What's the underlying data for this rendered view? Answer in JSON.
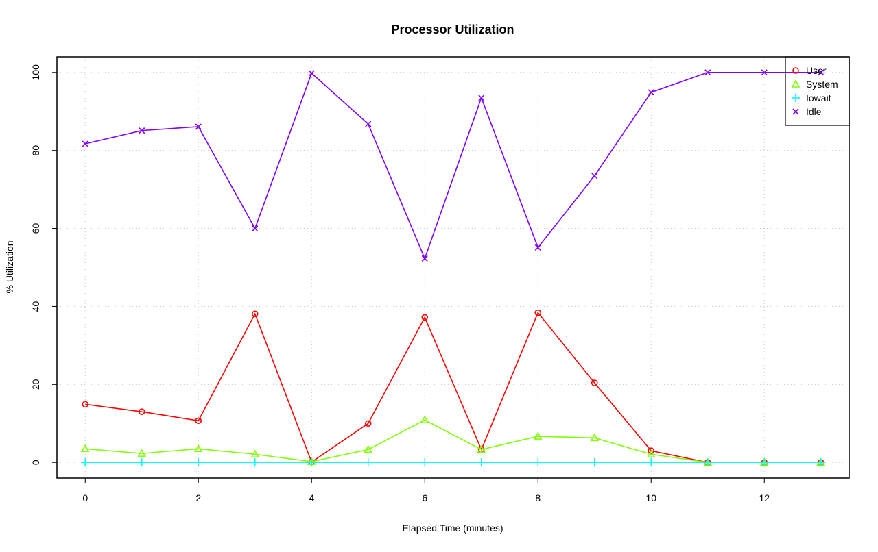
{
  "chart_data": {
    "type": "line",
    "title": "Processor Utilization",
    "xlabel": "Elapsed Time (minutes)",
    "ylabel": "% Utilization",
    "xlim": [
      -0.5,
      13.5
    ],
    "ylim": [
      -4,
      104
    ],
    "xticks": [
      0,
      2,
      4,
      6,
      8,
      10,
      12
    ],
    "yticks": [
      0,
      20,
      40,
      60,
      80,
      100
    ],
    "grid": true,
    "legend_position": "top-right",
    "x": [
      0,
      1,
      2,
      3,
      4,
      5,
      6,
      7,
      8,
      9,
      10,
      11,
      12,
      13
    ],
    "series": [
      {
        "name": "User",
        "color": "#ff0000",
        "marker": "circle",
        "values": [
          14.9,
          13.0,
          10.7,
          38.1,
          0.1,
          10.0,
          37.2,
          3.3,
          38.4,
          20.4,
          3.0,
          0,
          0,
          0
        ]
      },
      {
        "name": "System",
        "color": "#80ff00",
        "marker": "triangle",
        "values": [
          3.5,
          2.3,
          3.5,
          2.1,
          0.2,
          3.3,
          10.9,
          3.3,
          6.7,
          6.3,
          2.1,
          0,
          0,
          0
        ]
      },
      {
        "name": "Iowait",
        "color": "#00ffff",
        "marker": "plus",
        "values": [
          0,
          0,
          0,
          0,
          0,
          0,
          0,
          0,
          0,
          0,
          0,
          0,
          0,
          0
        ]
      },
      {
        "name": "Idle",
        "color": "#8000ff",
        "marker": "cross",
        "values": [
          81.7,
          85.1,
          86.1,
          60.0,
          99.8,
          86.8,
          52.3,
          93.5,
          55.1,
          73.5,
          94.9,
          100,
          100,
          100
        ]
      }
    ]
  }
}
